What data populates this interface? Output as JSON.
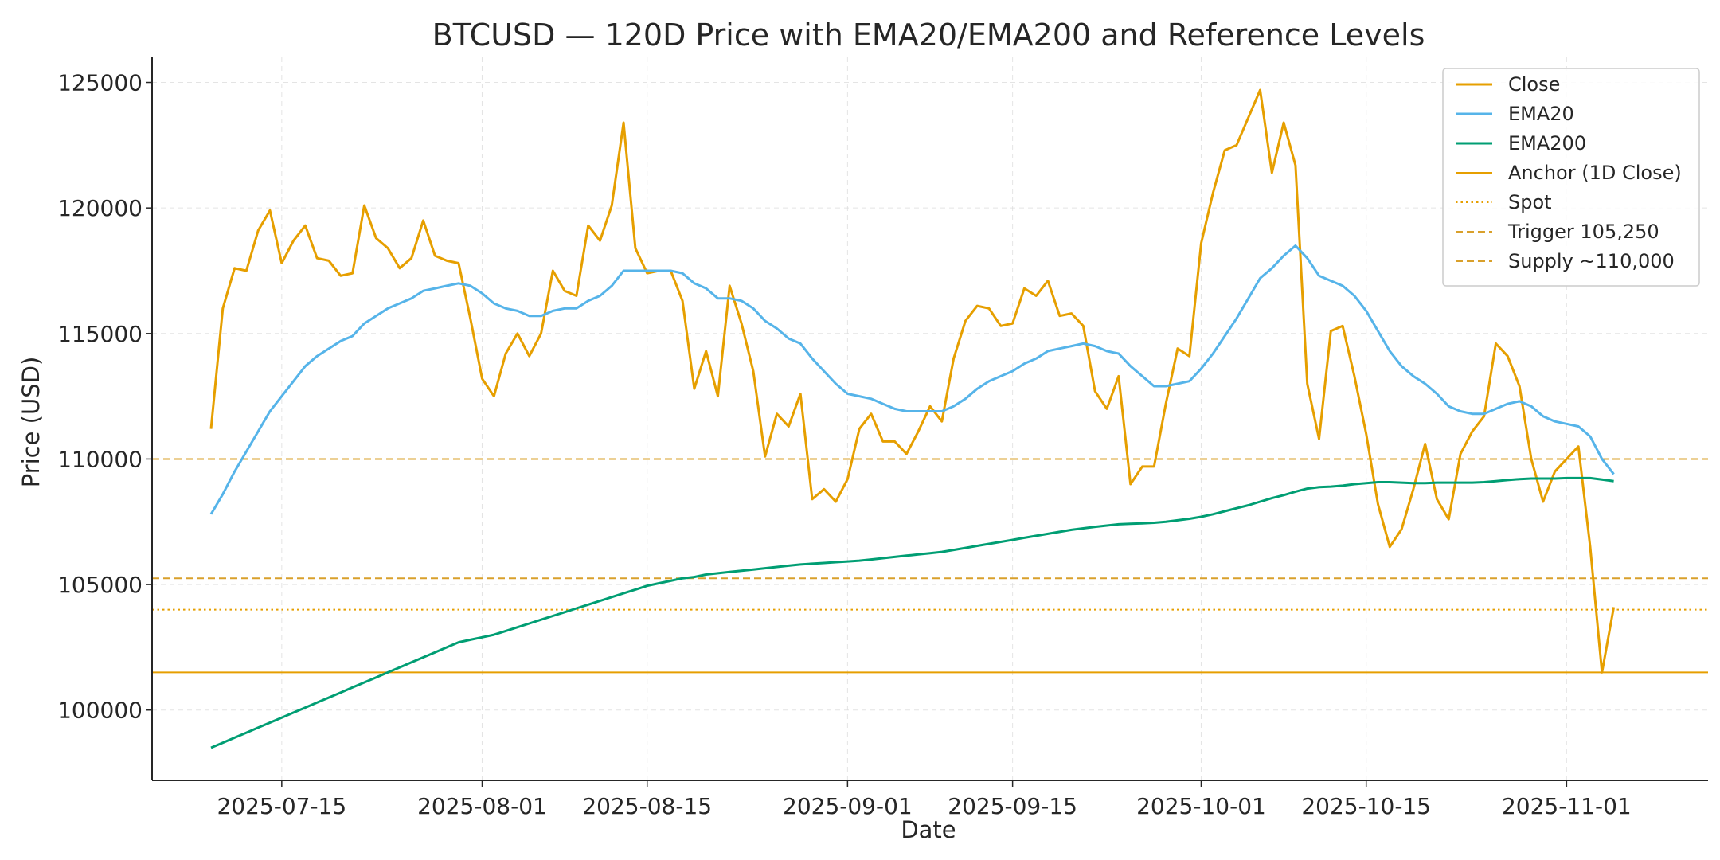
{
  "chart_data": {
    "type": "line",
    "title": "BTCUSD — 120D Price with EMA20/EMA200 and Reference Levels",
    "xlabel": "Date",
    "ylabel": "Price (USD)",
    "x_start": "2025-07-09",
    "x_step_days": 1,
    "xlim": [
      "2025-07-04",
      "2025-11-13"
    ],
    "ylim": [
      97200,
      126000
    ],
    "x_ticks": [
      "2025-07-15",
      "2025-08-01",
      "2025-08-15",
      "2025-09-01",
      "2025-09-15",
      "2025-10-01",
      "2025-10-15",
      "2025-11-01"
    ],
    "y_ticks": [
      100000,
      105000,
      110000,
      115000,
      120000,
      125000
    ],
    "grid": true,
    "legend_position": "top-right",
    "series": [
      {
        "name": "Close",
        "color": "#E69F00",
        "values": [
          111200,
          116000,
          117600,
          117500,
          119100,
          119900,
          117800,
          118700,
          119300,
          118000,
          117900,
          117300,
          117400,
          120100,
          118800,
          118400,
          117600,
          118000,
          119500,
          118100,
          117900,
          117800,
          115600,
          113200,
          112500,
          114200,
          115000,
          114100,
          115000,
          117500,
          116700,
          116500,
          119300,
          118700,
          120100,
          123400,
          118400,
          117400,
          117500,
          117500,
          116300,
          112800,
          114300,
          112500,
          116900,
          115400,
          113500,
          110100,
          111800,
          111300,
          112600,
          108400,
          108800,
          108300,
          109200,
          111200,
          111800,
          110700,
          110700,
          110200,
          111100,
          112100,
          111500,
          114000,
          115500,
          116100,
          116000,
          115300,
          115400,
          116800,
          116500,
          117100,
          115700,
          115800,
          115300,
          112700,
          112000,
          113300,
          109000,
          109700,
          109700,
          112200,
          114400,
          114100,
          118600,
          120600,
          122300,
          122500,
          123600,
          124700,
          121400,
          123400,
          121700,
          113000,
          110800,
          115100,
          115300,
          113300,
          111000,
          108200,
          106500,
          107200,
          108800,
          110600,
          108400,
          107600,
          110200,
          111100,
          111700,
          114600,
          114100,
          112900,
          110000,
          108300,
          109500,
          110000,
          110500,
          106500,
          101500,
          104100
        ]
      },
      {
        "name": "EMA20",
        "color": "#56B4E9",
        "values": [
          107800,
          108600,
          109500,
          110300,
          111100,
          111900,
          112500,
          113100,
          113700,
          114100,
          114400,
          114700,
          114900,
          115400,
          115700,
          116000,
          116200,
          116400,
          116700,
          116800,
          116900,
          117000,
          116900,
          116600,
          116200,
          116000,
          115900,
          115700,
          115700,
          115900,
          116000,
          116000,
          116300,
          116500,
          116900,
          117500,
          117500,
          117500,
          117500,
          117500,
          117400,
          117000,
          116800,
          116400,
          116400,
          116300,
          116000,
          115500,
          115200,
          114800,
          114600,
          114000,
          113500,
          113000,
          112600,
          112500,
          112400,
          112200,
          112000,
          111900,
          111900,
          111900,
          111900,
          112100,
          112400,
          112800,
          113100,
          113300,
          113500,
          113800,
          114000,
          114300,
          114400,
          114500,
          114600,
          114500,
          114300,
          114200,
          113700,
          113300,
          112900,
          112900,
          113000,
          113100,
          113600,
          114200,
          114900,
          115600,
          116400,
          117200,
          117600,
          118100,
          118500,
          118000,
          117300,
          117100,
          116900,
          116500,
          115900,
          115100,
          114300,
          113700,
          113300,
          113000,
          112600,
          112100,
          111900,
          111800,
          111800,
          112000,
          112200,
          112300,
          112100,
          111700,
          111500,
          111400,
          111300,
          110900,
          110000,
          109400
        ]
      },
      {
        "name": "EMA200",
        "color": "#009E73",
        "values": [
          98500,
          98700,
          98900,
          99100,
          99300,
          99500,
          99700,
          99900,
          100100,
          100300,
          100500,
          100700,
          100900,
          101100,
          101300,
          101500,
          101700,
          101900,
          102100,
          102300,
          102500,
          102700,
          102800,
          102900,
          103000,
          103150,
          103300,
          103450,
          103600,
          103750,
          103900,
          104050,
          104200,
          104350,
          104500,
          104650,
          104800,
          104950,
          105050,
          105150,
          105250,
          105300,
          105400,
          105450,
          105500,
          105550,
          105600,
          105650,
          105700,
          105750,
          105800,
          105830,
          105860,
          105890,
          105920,
          105950,
          106000,
          106050,
          106100,
          106150,
          106200,
          106250,
          106300,
          106380,
          106460,
          106540,
          106620,
          106700,
          106780,
          106860,
          106940,
          107020,
          107100,
          107180,
          107240,
          107300,
          107350,
          107400,
          107420,
          107440,
          107460,
          107500,
          107560,
          107620,
          107700,
          107800,
          107920,
          108040,
          108160,
          108300,
          108440,
          108560,
          108700,
          108820,
          108880,
          108900,
          108940,
          109000,
          109040,
          109080,
          109080,
          109060,
          109040,
          109040,
          109060,
          109060,
          109060,
          109060,
          109080,
          109120,
          109160,
          109200,
          109220,
          109220,
          109220,
          109240,
          109240,
          109240,
          109180,
          109120
        ]
      }
    ],
    "reference_lines": [
      {
        "name": "Anchor (1D Close)",
        "value": 101500,
        "style": "solid",
        "color": "#E69F00"
      },
      {
        "name": "Spot",
        "value": 104000,
        "style": "dotted",
        "color": "#E69F00"
      },
      {
        "name": "Trigger 105,250",
        "value": 105250,
        "style": "dashed",
        "color": "#D9A02B"
      },
      {
        "name": "Supply ~110,000",
        "value": 110000,
        "style": "dashed",
        "color": "#D9A02B"
      }
    ]
  }
}
